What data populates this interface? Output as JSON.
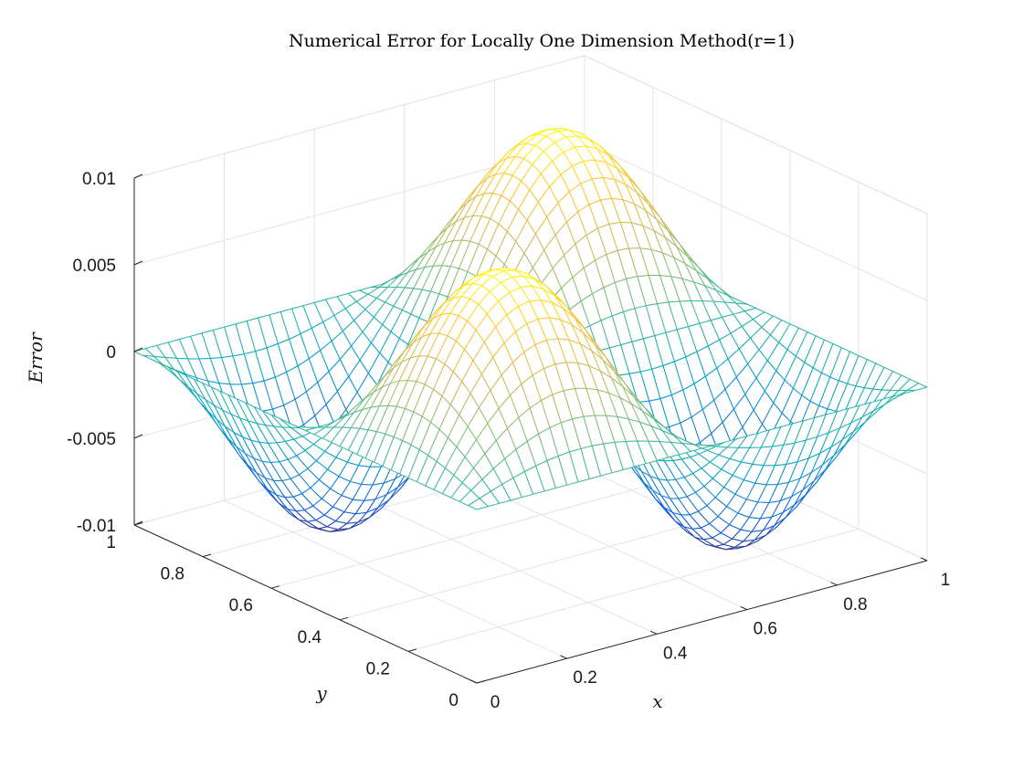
{
  "chart_data": {
    "type": "mesh",
    "title": "Numerical Error for Locally One Dimension Method(r=1)",
    "xlabel": "x",
    "ylabel": "y",
    "zlabel": "Error",
    "xlim": [
      0,
      1
    ],
    "ylim": [
      0,
      1
    ],
    "zlim": [
      -0.01,
      0.01
    ],
    "x_ticks": [
      "0",
      "0.2",
      "0.4",
      "0.6",
      "0.8",
      "1"
    ],
    "y_ticks": [
      "0",
      "0.2",
      "0.4",
      "0.6",
      "0.8",
      "1"
    ],
    "z_ticks": [
      "-0.01",
      "-0.005",
      "0",
      "0.005",
      "0.01"
    ],
    "grid": true,
    "colormap": "parula",
    "colormap_stops": [
      "#352a87",
      "#0f5cdd",
      "#1481d6",
      "#06a4ca",
      "#2eb7a4",
      "#87bf77",
      "#d1bb59",
      "#fec832",
      "#f9fb0e"
    ],
    "surface": {
      "function": "z = A * sin(2*pi*x) * sin(2*pi*y)",
      "amplitude": 0.0097,
      "grid_n": 41,
      "x_range": [
        0,
        1
      ],
      "y_range": [
        0,
        1
      ],
      "sample_values": [
        {
          "x": 0.25,
          "y": 0.75,
          "z": -0.0097
        },
        {
          "x": 0.75,
          "y": 0.25,
          "z": -0.0097
        },
        {
          "x": 0.25,
          "y": 0.25,
          "z": 0.0097
        },
        {
          "x": 0.75,
          "y": 0.75,
          "z": 0.0097
        },
        {
          "x": 0.5,
          "y": 0.5,
          "z": 0
        }
      ]
    }
  }
}
